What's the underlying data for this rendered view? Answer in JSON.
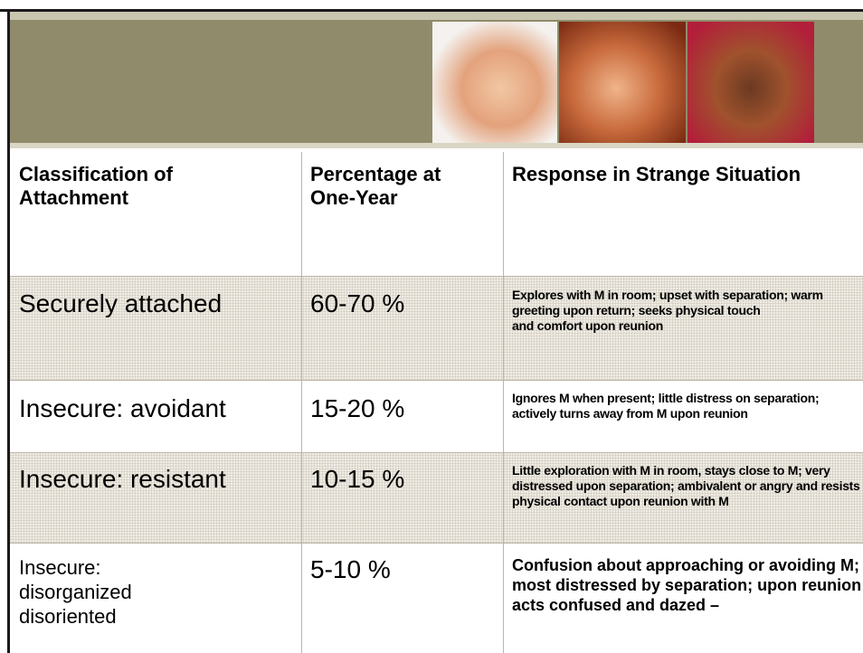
{
  "table": {
    "header": [
      "Classification of\nAttachment",
      "Percentage at\nOne-Year",
      "Response in Strange Situation"
    ],
    "rows": [
      [
        "Securely attached",
        "60-70 %",
        "Explores with M in room; upset with separation; warm greeting upon return; seeks physical touch\nand comfort upon reunion"
      ],
      [
        "Insecure: avoidant",
        "15-20 %",
        "Ignores M when present; little distress on separation; actively turns away from M upon reunion"
      ],
      [
        "Insecure: resistant",
        "10-15 %",
        "Little exploration with M in room, stays close to M; very distressed upon separation; ambivalent or angry and resists physical contact upon reunion with M"
      ],
      [
        "Insecure:\ndisorganized\ndisoriented",
        "5-10 %",
        "Confusion about approaching or avoiding M; most distressed by separation; upon reunion acts confused and dazed –"
      ]
    ]
  }
}
